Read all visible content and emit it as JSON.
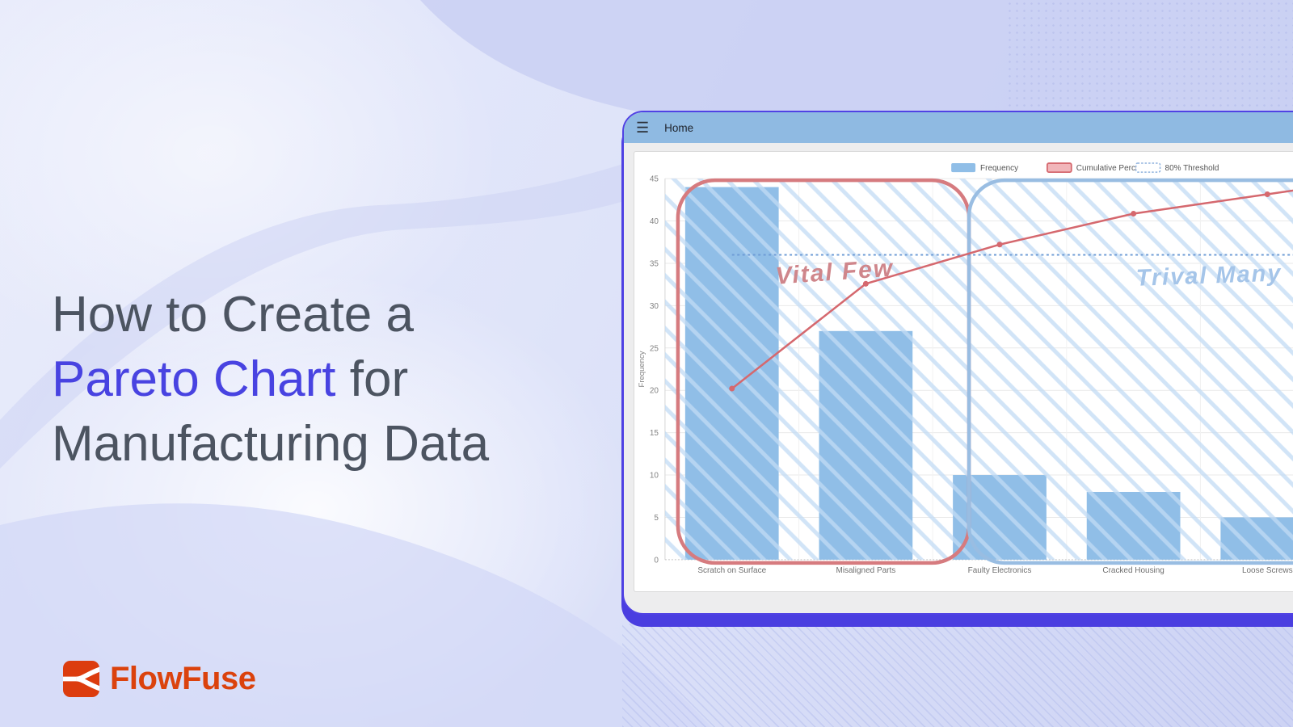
{
  "hero": {
    "line1": "How to Create a",
    "highlight": "Pareto Chart",
    "line2_rest": " for",
    "line3": "Manufacturing Data",
    "text_color": "#4C5461",
    "highlight_color": "#4843E1"
  },
  "brand": {
    "name": "FlowFuse",
    "icon_color": "#DC3C0E",
    "text_color": "#DB420D"
  },
  "app_window": {
    "title": "Home",
    "titlebar_color": "#8FBAE2",
    "border_color": "#5042E4",
    "shadow_color": "#4A3EE0",
    "body_color": "#EDEDEE"
  },
  "chart_data": {
    "type": "bar",
    "subtype": "pareto",
    "categories": [
      "Scratch on Surface",
      "Misaligned Parts",
      "Faulty Electronics",
      "Cracked Housing",
      "Loose Screws"
    ],
    "series": [
      {
        "name": "Frequency",
        "type": "bar",
        "values": [
          44,
          27,
          10,
          8,
          5
        ],
        "color": "#90BEE7"
      },
      {
        "name": "Cumulative Percentage",
        "type": "line",
        "values_pct": [
          44.9,
          72.4,
          82.7,
          90.8,
          95.9
        ],
        "color": "#D5686E",
        "swatch_fill": "#F1B6BA"
      },
      {
        "name": "80% Threshold",
        "type": "threshold",
        "value_pct": 80,
        "color": "#6E9CD6",
        "style": "dotted",
        "swatch_stroke": "#8FB2DE"
      }
    ],
    "ylabel": "Frequency",
    "ylim": [
      0,
      45
    ],
    "yticks": [
      0,
      5,
      10,
      15,
      20,
      25,
      30,
      35,
      40,
      45
    ],
    "pct_axis": {
      "left_units_per_pct": 0.45
    },
    "grid": true,
    "legend_position": "top-right",
    "hatch_color": "#C2DBF4",
    "annotations": [
      {
        "text": "Vital Few",
        "text_color": "#CF868B",
        "box_color": "#D67B7F",
        "covers": "first 2 categories"
      },
      {
        "text": "Trival Many",
        "text_color": "#A5C5E9",
        "box_color": "#99BDE2",
        "covers": "remaining categories"
      }
    ]
  }
}
